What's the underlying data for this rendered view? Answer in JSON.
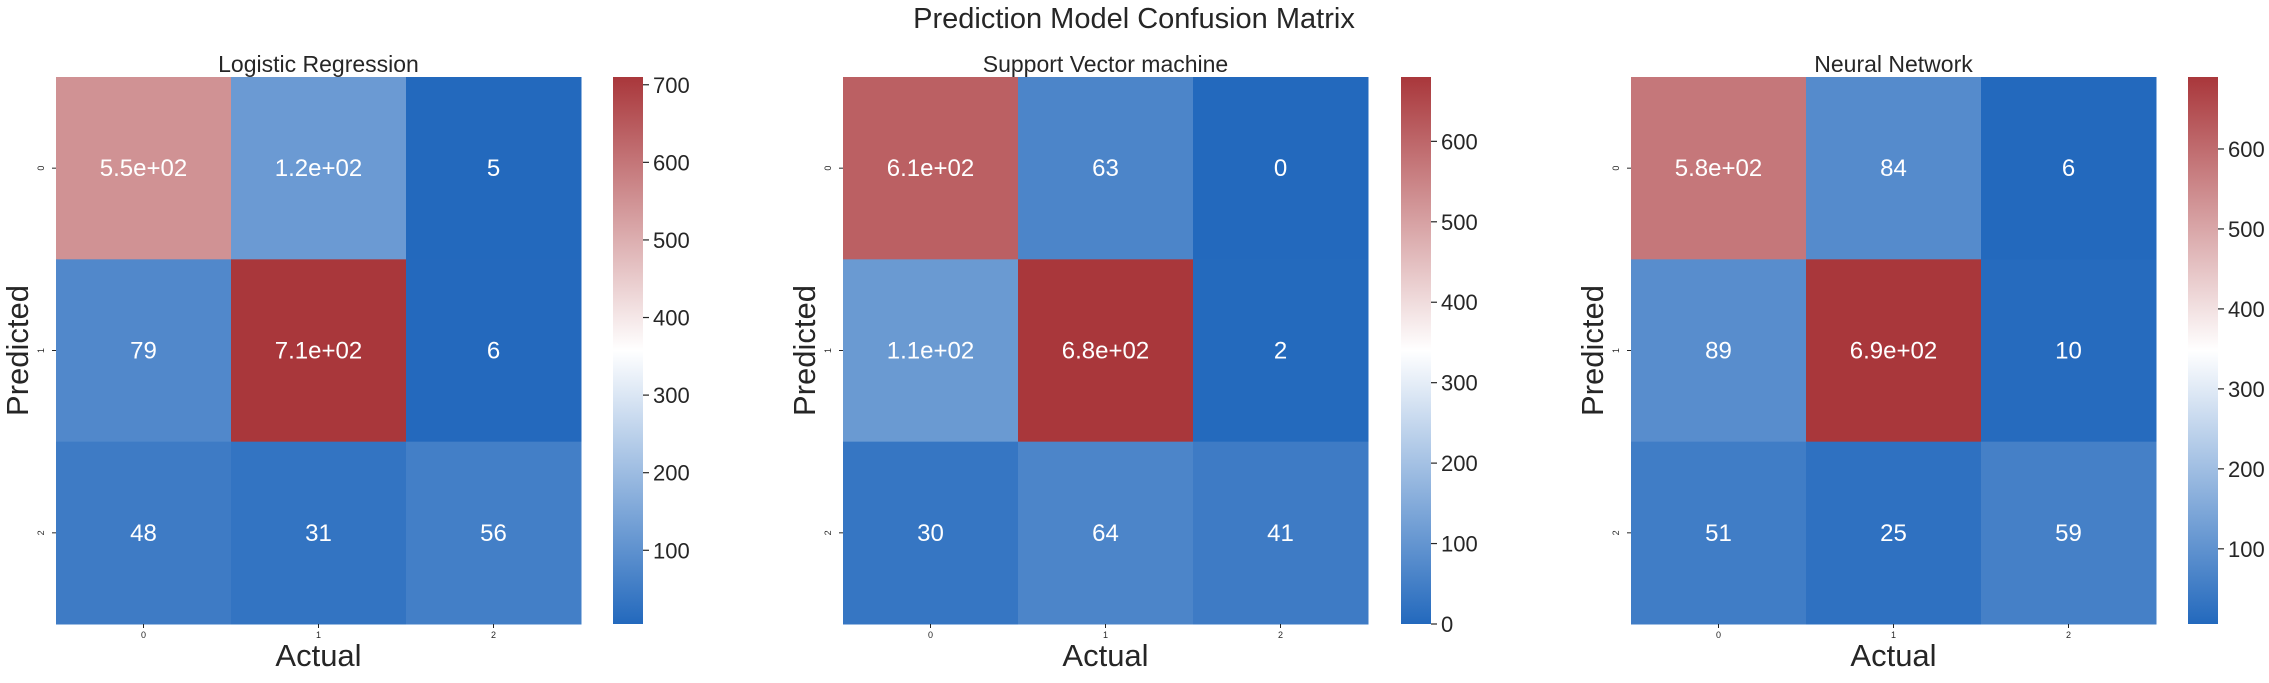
{
  "figure": {
    "title": "Prediction Model Confusion Matrix"
  },
  "chart_data": [
    {
      "type": "heatmap",
      "title": "Logistic Regression",
      "xlabel": "Actual",
      "ylabel": "Predicted",
      "x_categories": [
        "0",
        "1",
        "2"
      ],
      "y_categories": [
        "0",
        "1",
        "2"
      ],
      "values": [
        [
          550,
          120,
          5
        ],
        [
          79,
          710,
          6
        ],
        [
          48,
          31,
          56
        ]
      ],
      "annotations": [
        [
          "5.5e+02",
          "1.2e+02",
          "5"
        ],
        [
          "79",
          "7.1e+02",
          "6"
        ],
        [
          "48",
          "31",
          "56"
        ]
      ],
      "colorbar": {
        "range": [
          5,
          710
        ],
        "ticks": [
          100,
          200,
          300,
          400,
          500,
          600,
          700
        ]
      }
    },
    {
      "type": "heatmap",
      "title": "Support Vector machine",
      "xlabel": "Actual",
      "ylabel": "Predicted",
      "x_categories": [
        "0",
        "1",
        "2"
      ],
      "y_categories": [
        "0",
        "1",
        "2"
      ],
      "values": [
        [
          610,
          63,
          0
        ],
        [
          110,
          680,
          2
        ],
        [
          30,
          64,
          41
        ]
      ],
      "annotations": [
        [
          "6.1e+02",
          "63",
          "0"
        ],
        [
          "1.1e+02",
          "6.8e+02",
          "2"
        ],
        [
          "30",
          "64",
          "41"
        ]
      ],
      "colorbar": {
        "range": [
          0,
          680
        ],
        "ticks": [
          0,
          100,
          200,
          300,
          400,
          500,
          600
        ]
      }
    },
    {
      "type": "heatmap",
      "title": "Neural Network",
      "xlabel": "Actual",
      "ylabel": "Predicted",
      "x_categories": [
        "0",
        "1",
        "2"
      ],
      "y_categories": [
        "0",
        "1",
        "2"
      ],
      "values": [
        [
          580,
          84,
          6
        ],
        [
          89,
          690,
          10
        ],
        [
          51,
          25,
          59
        ]
      ],
      "annotations": [
        [
          "5.8e+02",
          "84",
          "6"
        ],
        [
          "89",
          "6.9e+02",
          "10"
        ],
        [
          "51",
          "25",
          "59"
        ]
      ],
      "colorbar": {
        "range": [
          6,
          690
        ],
        "ticks": [
          100,
          200,
          300,
          400,
          500,
          600
        ]
      }
    }
  ],
  "colormap": {
    "name": "vlag-reversed",
    "stops": [
      "#2369bd",
      "#ffffff",
      "#a9373b"
    ]
  }
}
